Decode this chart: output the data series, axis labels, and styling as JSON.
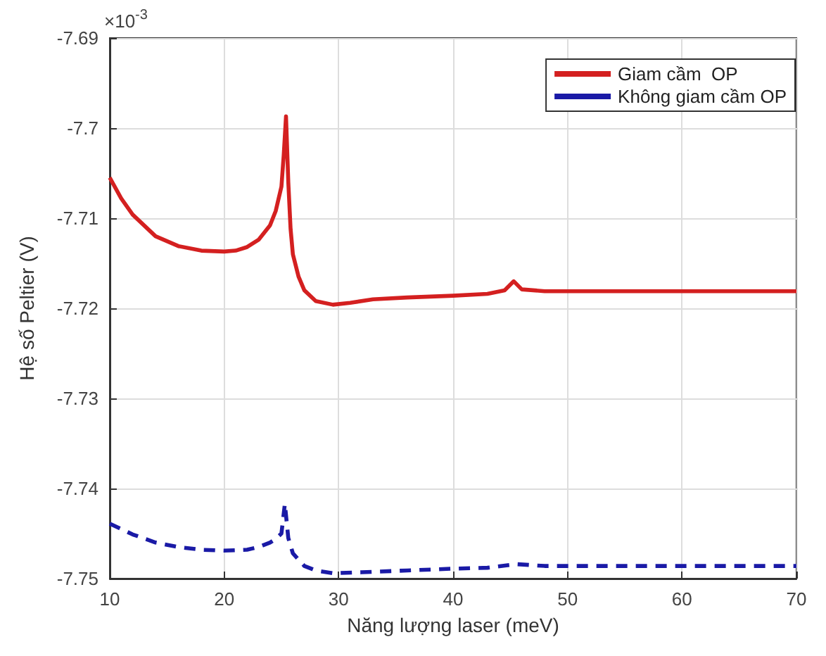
{
  "chart_data": {
    "type": "line",
    "xlabel": "Năng lượng laser (meV)",
    "ylabel": "Hệ số Peltier (V)",
    "annotations": [
      "×10$^{-3}$"
    ],
    "xlim": [
      10,
      70
    ],
    "xticks": [
      10,
      20,
      30,
      40,
      50,
      60,
      70
    ],
    "ylim": [
      -7.75,
      -7.69
    ],
    "yticks": [
      -7.75,
      -7.74,
      -7.73,
      -7.72,
      -7.71,
      -7.7,
      -7.69
    ],
    "grid": true,
    "legend": "top right",
    "marker": "none",
    "series": [
      {
        "name": "Giam cầm  OP",
        "color": "#d42020",
        "line_style": "solid",
        "x": [
          10,
          11,
          12,
          14,
          16,
          18,
          20,
          21,
          22,
          23,
          24,
          24.5,
          25,
          25.2,
          25.4,
          25.6,
          25.8,
          26,
          26.5,
          27,
          28,
          29.5,
          31,
          33,
          36,
          40,
          43,
          44.5,
          45.3,
          46,
          48,
          50,
          55,
          60,
          65,
          70
        ],
        "values": [
          -7.7055,
          -7.7078,
          -7.7096,
          -7.712,
          -7.7131,
          -7.7136,
          -7.7137,
          -7.7136,
          -7.7132,
          -7.7124,
          -7.7108,
          -7.7092,
          -7.7065,
          -7.703,
          -7.6987,
          -7.706,
          -7.7112,
          -7.714,
          -7.7165,
          -7.718,
          -7.7192,
          -7.7196,
          -7.7194,
          -7.719,
          -7.7188,
          -7.7186,
          -7.7184,
          -7.718,
          -7.717,
          -7.7179,
          -7.7181,
          -7.7181,
          -7.7181,
          -7.7181,
          -7.7181,
          -7.7181
        ]
      },
      {
        "name": "Không giam cầm OP",
        "color": "#1a1aa6",
        "line_style": "dashed",
        "x": [
          10,
          12,
          14,
          16,
          18,
          20,
          22,
          23,
          24,
          24.5,
          25,
          25.3,
          25.6,
          26,
          27,
          28,
          29.5,
          32,
          36,
          40,
          43,
          45.5,
          48,
          50,
          55,
          60,
          65,
          70
        ],
        "values": [
          -7.7439,
          -7.7451,
          -7.746,
          -7.7465,
          -7.7468,
          -7.7469,
          -7.7468,
          -7.7465,
          -7.746,
          -7.7456,
          -7.745,
          -7.7417,
          -7.7455,
          -7.7472,
          -7.7486,
          -7.7491,
          -7.7494,
          -7.7493,
          -7.7491,
          -7.7489,
          -7.7488,
          -7.7484,
          -7.7486,
          -7.7486,
          -7.7486,
          -7.7486,
          -7.7486,
          -7.7486
        ]
      }
    ]
  }
}
